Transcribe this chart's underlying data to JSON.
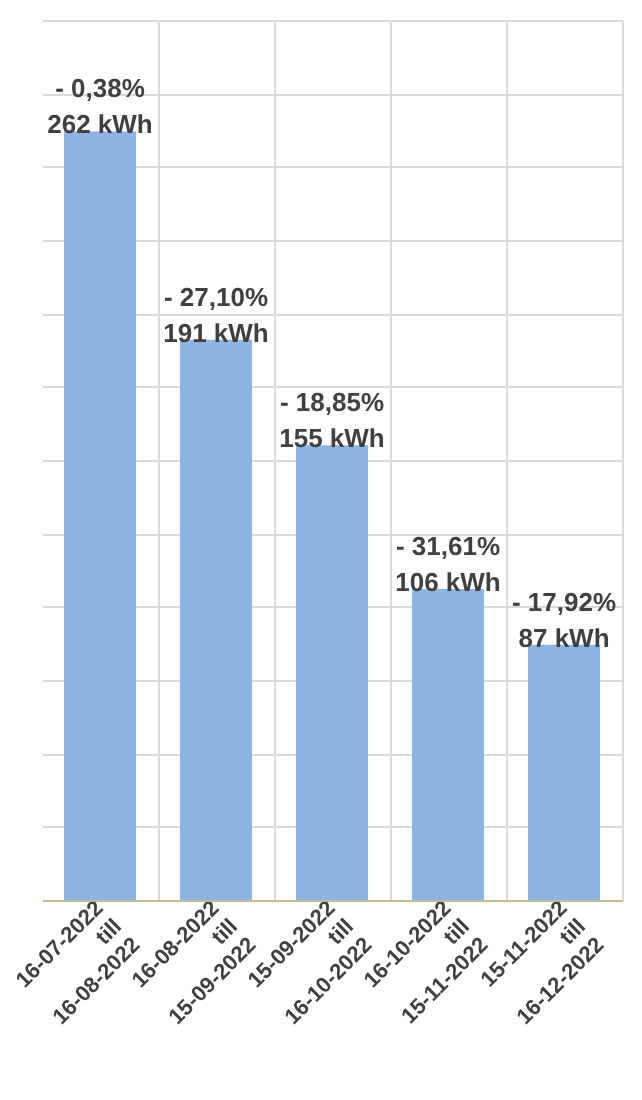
{
  "chart_data": {
    "type": "bar",
    "categories": [
      "16-07-2022\ntill\n16-08-2022",
      "16-08-2022\ntill\n15-09-2022",
      "15-09-2022\ntill\n16-10-2022",
      "16-10-2022\ntill\n15-11-2022",
      "15-11-2022\ntill\n16-12-2022"
    ],
    "values": [
      262,
      191,
      155,
      106,
      87
    ],
    "value_labels": [
      "- 0,38%\n262 kWh",
      "- 27,10%\n191 kWh",
      "- 18,85%\n155 kWh",
      "- 31,61%\n106 kWh",
      "- 17,92%\n87 kWh"
    ],
    "color": "#8db4e2",
    "ylim": [
      0,
      300
    ],
    "yticks": [
      {
        "value": 0,
        "label": null
      },
      {
        "value": 25,
        "label": null
      },
      {
        "value": 50,
        "label": null
      },
      {
        "value": 75,
        "label": null
      },
      {
        "value": 100,
        "label": null
      },
      {
        "value": 125,
        "label": null
      },
      {
        "value": 150,
        "label": null
      },
      {
        "value": 175,
        "label": null
      },
      {
        "value": 200,
        "label": null
      },
      {
        "value": 225,
        "label": null
      },
      {
        "value": 250,
        "label": null
      },
      {
        "value": 275,
        "label": null
      },
      {
        "value": 300,
        "label": null
      }
    ],
    "grid": true
  }
}
